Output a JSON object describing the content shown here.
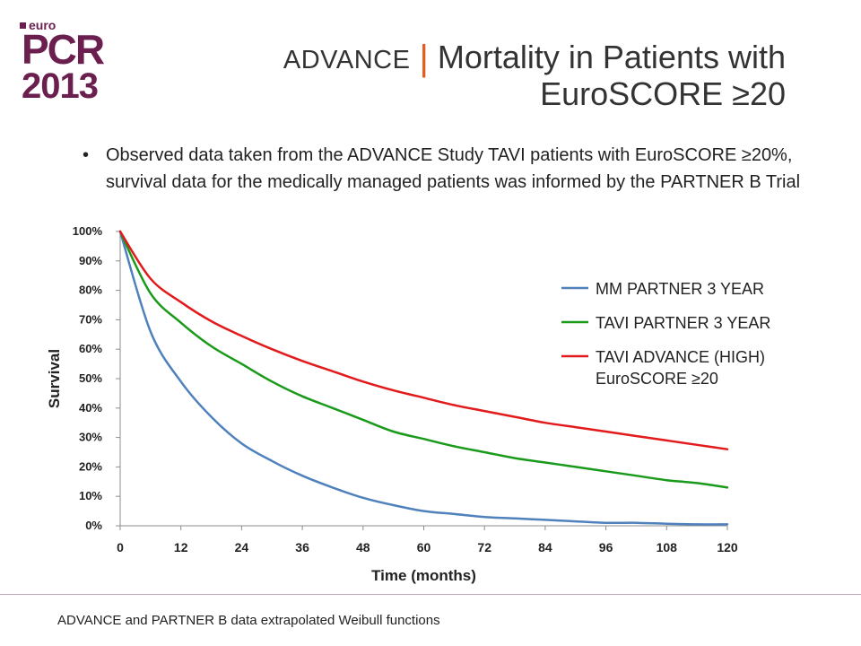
{
  "logo": {
    "euro": "euro",
    "brand": "PCR",
    "year": "2013"
  },
  "header": {
    "prefix": "ADVANCE",
    "separator": "|",
    "title_line1": "Mortality in Patients with",
    "title_line2": "EuroSCORE ≥20"
  },
  "bullet": "Observed data taken from the ADVANCE Study TAVI patients with EuroSCORE ≥20%, survival data for the medically managed patients was informed by the PARTNER B Trial",
  "footnote": "ADVANCE and PARTNER B data extrapolated Weibull functions",
  "chart_data": {
    "type": "line",
    "xlabel": "Time (months)",
    "ylabel": "Survival",
    "xlim": [
      0,
      120
    ],
    "ylim": [
      0,
      100
    ],
    "x_ticks": [
      0,
      12,
      24,
      36,
      48,
      60,
      72,
      84,
      96,
      108,
      120
    ],
    "y_ticks": [
      "0%",
      "10%",
      "20%",
      "30%",
      "40%",
      "50%",
      "60%",
      "70%",
      "80%",
      "90%",
      "100%"
    ],
    "legend_position": "top-right",
    "x": [
      0,
      6,
      12,
      18,
      24,
      30,
      36,
      42,
      48,
      54,
      60,
      66,
      72,
      78,
      84,
      90,
      96,
      102,
      108,
      114,
      120
    ],
    "series": [
      {
        "name": "MM PARTNER 3 YEAR",
        "color": "#4f81bd",
        "values": [
          100,
          66,
          49,
          37,
          28,
          22,
          17,
          13,
          9.5,
          7,
          5,
          4,
          3,
          2.5,
          2,
          1.5,
          1,
          1,
          0.7,
          0.5,
          0.5
        ]
      },
      {
        "name": "TAVI PARTNER 3 YEAR",
        "color": "#1a9a1a",
        "values": [
          100,
          79,
          69,
          61,
          55,
          49,
          44,
          40,
          36,
          32,
          29.5,
          27,
          25,
          23,
          21.5,
          20,
          18.5,
          17,
          15.5,
          14.5,
          13
        ]
      },
      {
        "name": "TAVI ADVANCE (HIGH) EuroSCORE ≥20",
        "color": "#e31a1c",
        "values": [
          100,
          84,
          76,
          69.5,
          64.5,
          60,
          56,
          52.5,
          49,
          46,
          43.5,
          41,
          39,
          37,
          35,
          33.5,
          32,
          30.5,
          29,
          27.5,
          26
        ]
      }
    ]
  }
}
